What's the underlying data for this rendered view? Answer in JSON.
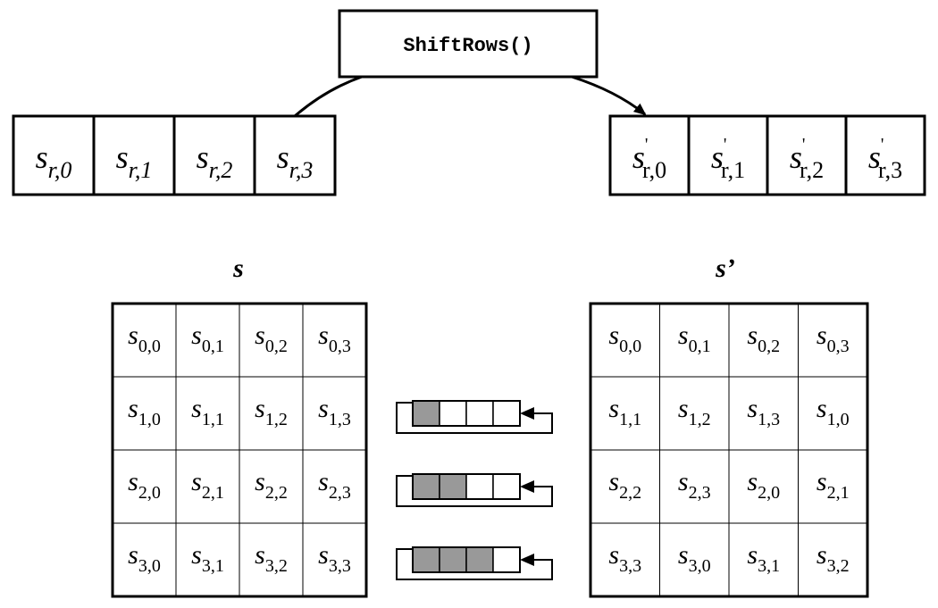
{
  "operation_label": "ShiftRows()",
  "state_in_label": "s",
  "state_out_label": "s’",
  "row_in": {
    "cells": [
      {
        "base": "s",
        "sub": "r,0"
      },
      {
        "base": "s",
        "sub": "r,1"
      },
      {
        "base": "s",
        "sub": "r,2"
      },
      {
        "base": "s",
        "sub": "r,3"
      }
    ]
  },
  "row_out": {
    "prime": "'",
    "cells": [
      {
        "base": "s",
        "sub": "r,0"
      },
      {
        "base": "s",
        "sub": "r,1"
      },
      {
        "base": "s",
        "sub": "r,2"
      },
      {
        "base": "s",
        "sub": "r,3"
      }
    ]
  },
  "state_in": {
    "base": "s",
    "rows": [
      [
        "0,0",
        "0,1",
        "0,2",
        "0,3"
      ],
      [
        "1,0",
        "1,1",
        "1,2",
        "1,3"
      ],
      [
        "2,0",
        "2,1",
        "2,2",
        "2,3"
      ],
      [
        "3,0",
        "3,1",
        "3,2",
        "3,3"
      ]
    ]
  },
  "state_out": {
    "base": "s",
    "rows": [
      [
        "0,0",
        "0,1",
        "0,2",
        "0,3"
      ],
      [
        "1,1",
        "1,2",
        "1,3",
        "1,0"
      ],
      [
        "2,2",
        "2,3",
        "2,0",
        "2,1"
      ],
      [
        "3,3",
        "3,0",
        "3,1",
        "3,2"
      ]
    ]
  },
  "shift_indicators": [
    {
      "row": 1,
      "shifted_cells": 1,
      "total_cells": 4
    },
    {
      "row": 2,
      "shifted_cells": 2,
      "total_cells": 4
    },
    {
      "row": 3,
      "shifted_cells": 3,
      "total_cells": 4
    }
  ],
  "colors": {
    "stroke": "#000000",
    "shifted_fill": "#999999",
    "background": "#ffffff"
  }
}
